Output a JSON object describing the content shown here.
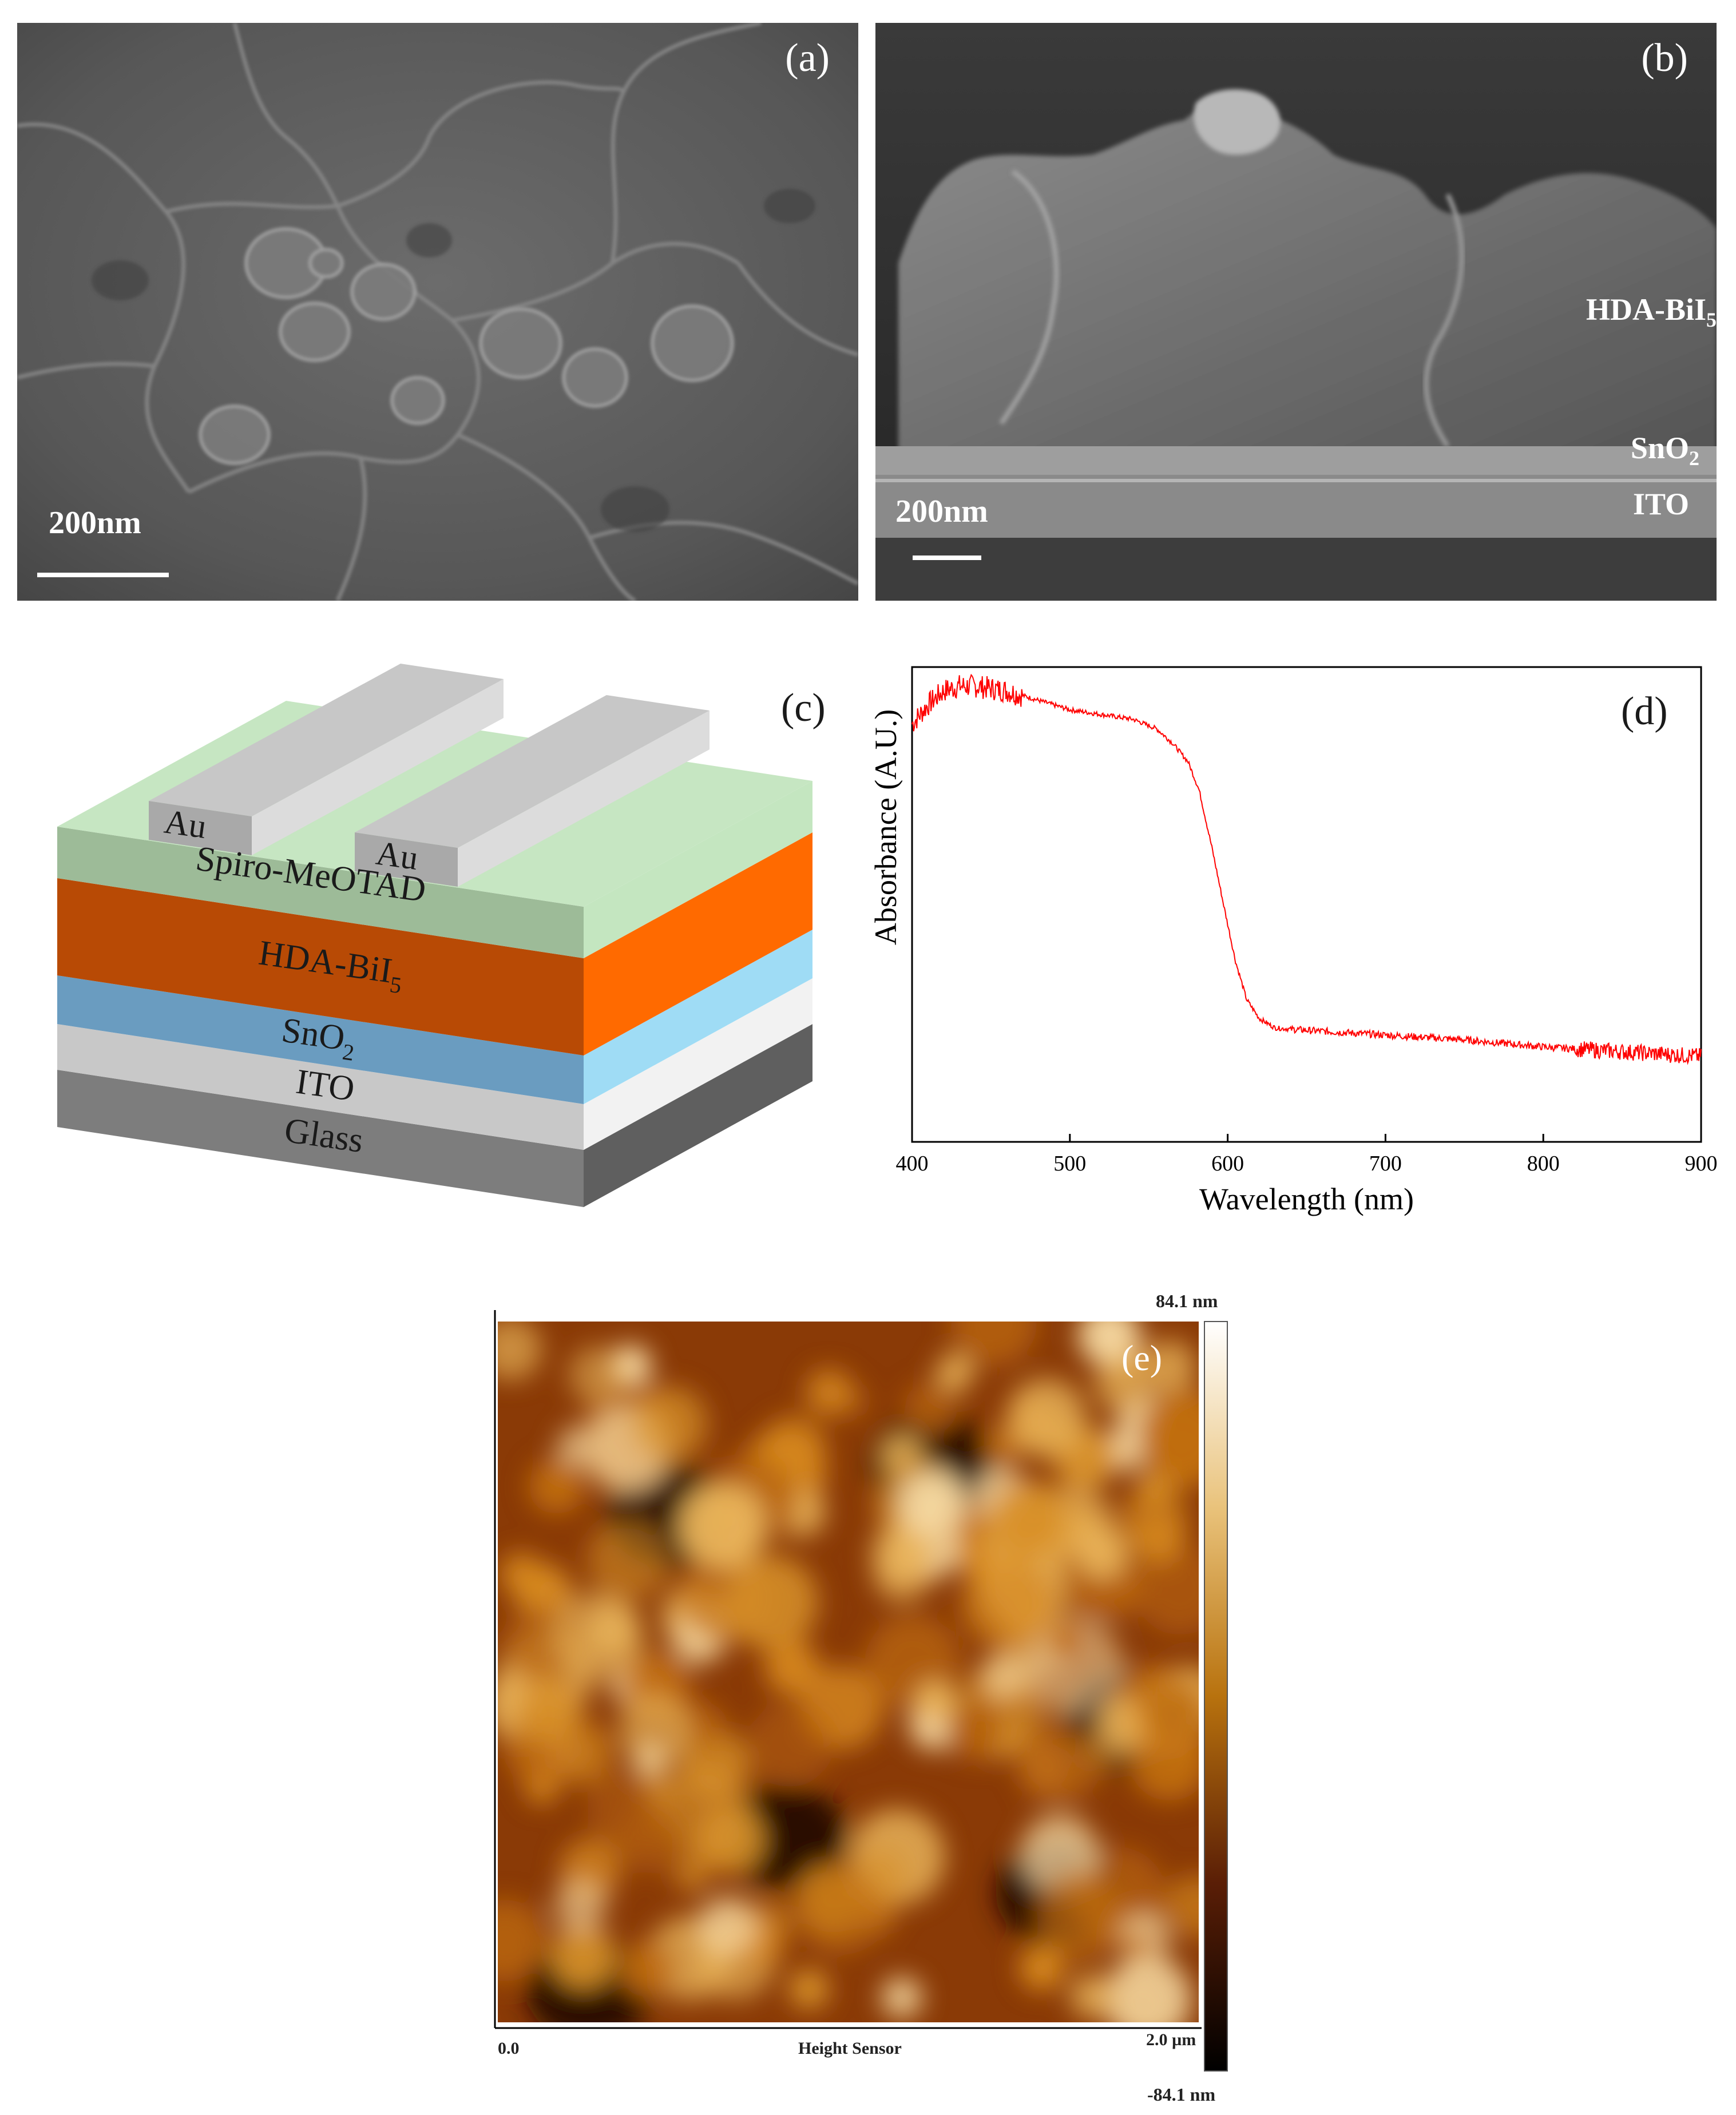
{
  "panel_a": {
    "label": "(a)",
    "scale_bar": "200nm"
  },
  "panel_b": {
    "label": "(b)",
    "scale_bar": "200nm",
    "layers": {
      "hda_prefix": "HDA-BiI",
      "hda_sub": "5",
      "sno2_prefix": "SnO",
      "sno2_sub": "2",
      "ito": "ITO"
    }
  },
  "panel_c": {
    "label": "(c)",
    "au_left": "Au",
    "au_right": "Au",
    "spiro": "Spiro-MeOTAD",
    "hda_prefix": "HDA-BiI",
    "hda_sub": "5",
    "sno2_prefix": "SnO",
    "sno2_sub": "2",
    "ito": "ITO",
    "glass": "Glass",
    "colors": {
      "au": "#c9c9c9",
      "spiro": "#c6e6c2",
      "hda": "#f2680a",
      "sno2": "#8fcff0",
      "ito": "#e6e6e6",
      "glass": "#7d7d7d"
    }
  },
  "panel_d": {
    "label": "(d)",
    "chart_data": {
      "type": "line",
      "xlabel": "Wavelength (nm)",
      "ylabel": "Absorbance (A.U.)",
      "xlim": [
        400,
        900
      ],
      "x_ticks": [
        400,
        500,
        600,
        700,
        800,
        900
      ],
      "y_ticks": [],
      "grid": false,
      "series": [
        {
          "color": "#ff0000",
          "points": [
            [
              400,
              0.88
            ],
            [
              410,
              0.92
            ],
            [
              420,
              0.95
            ],
            [
              430,
              0.96
            ],
            [
              440,
              0.96
            ],
            [
              460,
              0.95
            ],
            [
              480,
              0.93
            ],
            [
              500,
              0.91
            ],
            [
              520,
              0.9
            ],
            [
              540,
              0.89
            ],
            [
              555,
              0.87
            ],
            [
              565,
              0.84
            ],
            [
              575,
              0.8
            ],
            [
              582,
              0.74
            ],
            [
              590,
              0.62
            ],
            [
              598,
              0.49
            ],
            [
              605,
              0.38
            ],
            [
              612,
              0.3
            ],
            [
              620,
              0.26
            ],
            [
              630,
              0.24
            ],
            [
              650,
              0.235
            ],
            [
              700,
              0.225
            ],
            [
              750,
              0.215
            ],
            [
              800,
              0.2
            ],
            [
              850,
              0.19
            ],
            [
              900,
              0.18
            ]
          ]
        }
      ]
    }
  },
  "panel_e": {
    "label": "(e)",
    "scale_top": "84.1 nm",
    "scale_bottom": "-84.1 nm",
    "axis_min": "0.0",
    "axis_max": "2.0 µm",
    "axis_title": "Height Sensor"
  }
}
